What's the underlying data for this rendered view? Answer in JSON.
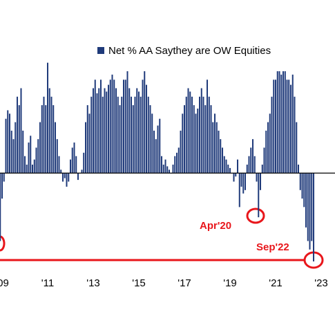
{
  "chart_data": {
    "type": "bar",
    "series": [
      {
        "name": "Net % AA Saythey are OW Equities",
        "color": "#1f3a7a",
        "values": [
          -40,
          -15,
          -5,
          32,
          37,
          35,
          25,
          20,
          30,
          45,
          40,
          50,
          25,
          10,
          5,
          18,
          22,
          5,
          8,
          15,
          20,
          30,
          40,
          45,
          40,
          65,
          50,
          45,
          40,
          30,
          20,
          10,
          2,
          -5,
          -3,
          -8,
          -5,
          8,
          15,
          18,
          10,
          -4,
          0,
          2,
          12,
          30,
          40,
          35,
          45,
          50,
          55,
          47,
          50,
          55,
          45,
          50,
          48,
          52,
          55,
          58,
          55,
          50,
          45,
          40,
          45,
          55,
          55,
          60,
          50,
          45,
          40,
          45,
          50,
          48,
          45,
          55,
          60,
          52,
          45,
          40,
          35,
          25,
          20,
          28,
          32,
          10,
          5,
          8,
          4,
          2,
          0,
          5,
          10,
          12,
          15,
          25,
          35,
          40,
          45,
          50,
          48,
          45,
          40,
          35,
          38,
          45,
          50,
          45,
          40,
          55,
          45,
          40,
          30,
          35,
          30,
          25,
          20,
          15,
          10,
          8,
          5,
          3,
          0,
          -5,
          -2,
          8,
          -20,
          -8,
          -12,
          -10,
          5,
          10,
          15,
          20,
          10,
          -5,
          -26,
          -10,
          5,
          15,
          25,
          30,
          35,
          45,
          55,
          55,
          60,
          60,
          58,
          60,
          60,
          55,
          55,
          52,
          58,
          45,
          30,
          5,
          -10,
          -15,
          -20,
          -32,
          -40,
          -45,
          -40,
          -52
        ]
      }
    ],
    "x": [
      2008.917,
      2009.0,
      2009.083,
      2009.167,
      2009.25,
      2009.333,
      2009.417,
      2009.5,
      2009.583,
      2009.667,
      2009.75,
      2009.833,
      2009.917,
      2010.0,
      2010.083,
      2010.167,
      2010.25,
      2010.333,
      2010.417,
      2010.5,
      2010.583,
      2010.667,
      2010.75,
      2010.833,
      2010.917,
      2011.0,
      2011.083,
      2011.167,
      2011.25,
      2011.333,
      2011.417,
      2011.5,
      2011.583,
      2011.667,
      2011.75,
      2011.833,
      2011.917,
      2012.0,
      2012.083,
      2012.167,
      2012.25,
      2012.333,
      2012.417,
      2012.5,
      2012.583,
      2012.667,
      2012.75,
      2012.833,
      2012.917,
      2013.0,
      2013.083,
      2013.167,
      2013.25,
      2013.333,
      2013.417,
      2013.5,
      2013.583,
      2013.667,
      2013.75,
      2013.833,
      2013.917,
      2014.0,
      2014.083,
      2014.167,
      2014.25,
      2014.333,
      2014.417,
      2014.5,
      2014.583,
      2014.667,
      2014.75,
      2014.833,
      2014.917,
      2015.0,
      2015.083,
      2015.167,
      2015.25,
      2015.333,
      2015.417,
      2015.5,
      2015.583,
      2015.667,
      2015.75,
      2015.833,
      2015.917,
      2016.0,
      2016.083,
      2016.167,
      2016.25,
      2016.333,
      2016.417,
      2016.5,
      2016.583,
      2016.667,
      2016.75,
      2016.833,
      2016.917,
      2017.0,
      2017.083,
      2017.167,
      2017.25,
      2017.333,
      2017.417,
      2017.5,
      2017.583,
      2017.667,
      2017.75,
      2017.833,
      2017.917,
      2018.0,
      2018.083,
      2018.167,
      2018.25,
      2018.333,
      2018.417,
      2018.5,
      2018.583,
      2018.667,
      2018.75,
      2018.833,
      2018.917,
      2019.0,
      2019.083,
      2019.167,
      2019.25,
      2019.333,
      2019.417,
      2019.5,
      2019.583,
      2019.667,
      2019.75,
      2019.833,
      2019.917,
      2020.0,
      2020.083,
      2020.167,
      2020.25,
      2020.333,
      2020.417,
      2020.5,
      2020.583,
      2020.667,
      2020.75,
      2020.833,
      2020.917,
      2021.0,
      2021.083,
      2021.167,
      2021.25,
      2021.333,
      2021.417,
      2021.5,
      2021.583,
      2021.667,
      2021.75,
      2021.833,
      2021.917,
      2022.0,
      2022.083,
      2022.167,
      2022.25,
      2022.333,
      2022.417,
      2022.5,
      2022.583,
      2022.667
    ],
    "xlim": [
      2008.909,
      2023.606
    ],
    "xticks": [
      {
        "value": 2009,
        "label": "'09"
      },
      {
        "value": 2011,
        "label": "'11"
      },
      {
        "value": 2013,
        "label": "'13"
      },
      {
        "value": 2015,
        "label": "'15"
      },
      {
        "value": 2017,
        "label": "'17"
      },
      {
        "value": 2019,
        "label": "'19"
      },
      {
        "value": 2021,
        "label": "'21"
      },
      {
        "value": 2023,
        "label": "'23"
      }
    ],
    "ylim": [
      -60,
      70
    ],
    "annotations": [
      "Apr'20",
      "Sep'22"
    ],
    "annotation_color": "#e8161b"
  }
}
